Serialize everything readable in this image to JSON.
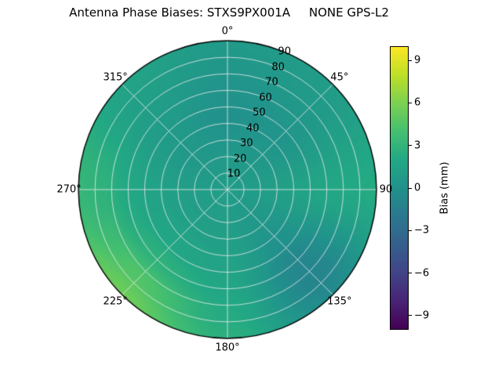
{
  "chart_data": {
    "type": "heatmap",
    "projection": "polar",
    "title": "Antenna Phase Biases: STXS9PX001A     NONE GPS-L2",
    "theta_tick_labels": [
      "0°",
      "45°",
      "90",
      "135°",
      "180°",
      "225°",
      "270°",
      "315°"
    ],
    "theta_tick_deg": [
      0,
      45,
      90,
      135,
      180,
      225,
      270,
      315
    ],
    "radial_tick_labels": [
      "10",
      "20",
      "30",
      "40",
      "50",
      "60",
      "70",
      "80",
      "90"
    ],
    "radial_tick_deg": [
      10,
      20,
      30,
      40,
      50,
      60,
      70,
      80,
      90
    ],
    "radial_label_azimuth_deg": 22.5,
    "radial_max_deg": 90,
    "grid_on": true,
    "colorbar": {
      "label": "Bias (mm)",
      "tick_labels": [
        "9",
        "6",
        "3",
        "0",
        "−3",
        "−6",
        "−9"
      ],
      "tick_values": [
        9,
        6,
        3,
        0,
        -3,
        -6,
        -9
      ],
      "vmin": -10,
      "vmax": 10,
      "colormap": "viridis"
    },
    "grid": {
      "zenith_deg": [
        0,
        15,
        30,
        45,
        60,
        75,
        90
      ],
      "azimuth_deg": [
        0,
        45,
        90,
        135,
        180,
        225,
        270,
        315,
        360
      ],
      "bias_mm": [
        [
          1.0,
          1.0,
          1.0,
          1.0,
          1.0,
          1.0,
          1.0,
          1.0,
          1.0
        ],
        [
          0.8,
          0.8,
          1.0,
          0.8,
          1.0,
          1.0,
          1.0,
          0.8,
          0.8
        ],
        [
          0.3,
          0.5,
          1.2,
          0.5,
          1.2,
          1.3,
          1.2,
          0.6,
          0.3
        ],
        [
          0.0,
          0.3,
          1.5,
          0.0,
          1.5,
          1.8,
          1.5,
          0.8,
          0.0
        ],
        [
          0.2,
          0.5,
          1.8,
          -0.8,
          1.8,
          2.8,
          2.0,
          1.0,
          0.2
        ],
        [
          0.5,
          0.8,
          2.0,
          -1.0,
          2.2,
          4.5,
          2.8,
          1.3,
          0.5
        ],
        [
          0.8,
          1.0,
          2.2,
          -0.5,
          2.6,
          5.5,
          3.2,
          1.6,
          0.8
        ]
      ]
    }
  }
}
